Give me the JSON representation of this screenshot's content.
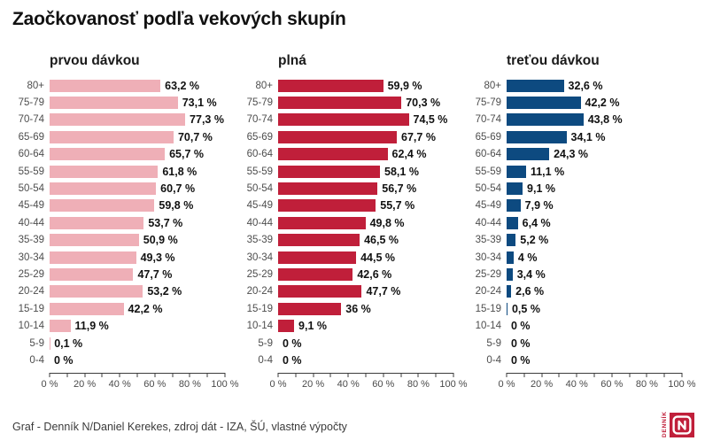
{
  "title": "Zaočkovanosť podľa vekových skupín",
  "footer": {
    "credit": "Graf - Denník N/Daniel Kerekes, zdroj dát - IZA, ŠÚ, vlastné výpočty",
    "logo_text": "DENNÍK",
    "logo_letter": "N",
    "logo_color": "#c01f3a"
  },
  "chart_data": {
    "type": "bar",
    "orientation": "horizontal",
    "grid": false,
    "legend": "none",
    "categories": [
      "80+",
      "75-79",
      "70-74",
      "65-69",
      "60-64",
      "55-59",
      "50-54",
      "45-49",
      "40-44",
      "35-39",
      "30-34",
      "25-29",
      "20-24",
      "15-19",
      "10-14",
      "5-9",
      "0-4"
    ],
    "xlim": [
      0,
      100
    ],
    "x_minor_step": 10,
    "xticks": [
      0,
      20,
      40,
      60,
      80,
      100
    ],
    "xtick_labels": [
      "0 %",
      "20 %",
      "40 %",
      "60 %",
      "80 %",
      "100 %"
    ],
    "panels": [
      {
        "title": "prvou dávkou",
        "color": "#efafb7",
        "values": [
          63.2,
          73.1,
          77.3,
          70.7,
          65.7,
          61.8,
          60.7,
          59.8,
          53.7,
          50.9,
          49.3,
          47.7,
          53.2,
          42.2,
          11.9,
          0.1,
          0
        ],
        "labels": [
          "63,2 %",
          "73,1 %",
          "77,3 %",
          "70,7 %",
          "65,7 %",
          "61,8 %",
          "60,7 %",
          "59,8 %",
          "53,7 %",
          "50,9 %",
          "49,3 %",
          "47,7 %",
          "53,2 %",
          "42,2 %",
          "11,9 %",
          "0,1 %",
          "0 %"
        ]
      },
      {
        "title": "plná",
        "color": "#c01f3a",
        "values": [
          59.9,
          70.3,
          74.5,
          67.7,
          62.4,
          58.1,
          56.7,
          55.7,
          49.8,
          46.5,
          44.5,
          42.6,
          47.7,
          36,
          9.1,
          0,
          0
        ],
        "labels": [
          "59,9 %",
          "70,3 %",
          "74,5 %",
          "67,7 %",
          "62,4 %",
          "58,1 %",
          "56,7 %",
          "55,7 %",
          "49,8 %",
          "46,5 %",
          "44,5 %",
          "42,6 %",
          "47,7 %",
          "36 %",
          "9,1 %",
          "0 %",
          "0 %"
        ]
      },
      {
        "title": "treťou dávkou",
        "color": "#0d4a80",
        "values": [
          32.6,
          42.2,
          43.8,
          34.1,
          24.3,
          11.1,
          9.1,
          7.9,
          6.4,
          5.2,
          4,
          3.4,
          2.6,
          0.5,
          0,
          0,
          0
        ],
        "labels": [
          "32,6 %",
          "42,2 %",
          "43,8 %",
          "34,1 %",
          "24,3 %",
          "11,1 %",
          "9,1 %",
          "7,9 %",
          "6,4 %",
          "5,2 %",
          "4 %",
          "3,4 %",
          "2,6 %",
          "0,5 %",
          "0 %",
          "0 %",
          "0 %"
        ]
      }
    ]
  }
}
